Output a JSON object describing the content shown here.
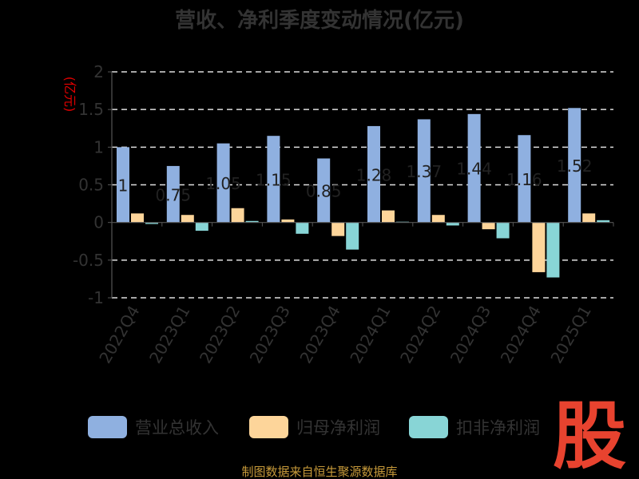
{
  "chart_data": {
    "type": "bar",
    "title": "营收、净利季度变动情况(亿元)",
    "ylabel": "(亿元)",
    "ylim": [
      -1,
      2
    ],
    "yticks": [
      "2",
      "1.5",
      "1",
      "0.5",
      "0",
      "-0.5",
      "-1"
    ],
    "ytick_values": [
      2,
      1.5,
      1,
      0.5,
      0,
      -0.5,
      -1
    ],
    "categories": [
      "2022Q4",
      "2023Q1",
      "2023Q2",
      "2023Q3",
      "2023Q4",
      "2024Q1",
      "2024Q2",
      "2024Q3",
      "2024Q4",
      "2025Q1"
    ],
    "series": [
      {
        "name": "营业总收入",
        "color": "#8fb0e0",
        "values": [
          1.0,
          0.75,
          1.05,
          1.15,
          0.85,
          1.28,
          1.37,
          1.44,
          1.16,
          1.52
        ]
      },
      {
        "name": "归母净利润",
        "color": "#fdd59a",
        "values": [
          0.12,
          0.1,
          0.19,
          0.04,
          -0.18,
          0.16,
          0.1,
          -0.09,
          -0.66,
          0.12
        ]
      },
      {
        "name": "扣非净利润",
        "color": "#88d5d6",
        "values": [
          -0.02,
          -0.11,
          0.02,
          -0.15,
          -0.36,
          0.01,
          -0.04,
          -0.21,
          -0.73,
          0.03
        ]
      }
    ],
    "data_labels": [
      "1",
      "0.75",
      "1.05",
      "1.15",
      "0.85",
      "1.28",
      "1.37",
      "1.44",
      "1.16",
      "1.52"
    ],
    "grid": true,
    "legend_position": "bottom"
  },
  "footer": {
    "source": "制图数据来自恒生聚源数据库"
  },
  "logo": {
    "text": "股"
  }
}
